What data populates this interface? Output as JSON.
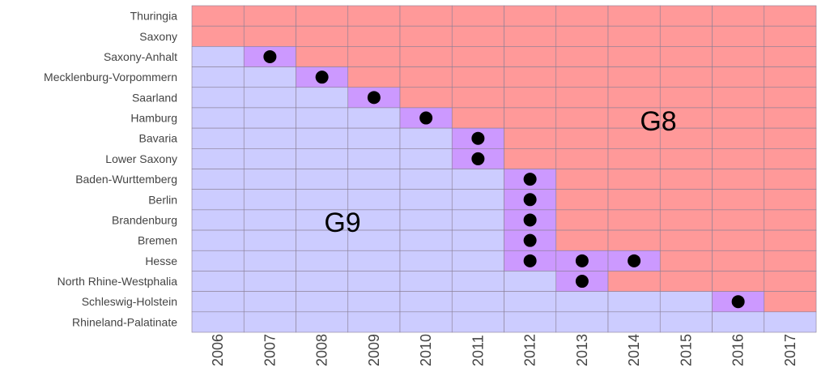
{
  "chart_data": {
    "type": "heatmap",
    "x": [
      2006,
      2007,
      2008,
      2009,
      2010,
      2011,
      2012,
      2013,
      2014,
      2015,
      2016,
      2017
    ],
    "series": [
      {
        "name": "G9",
        "color": "#ccccff"
      },
      {
        "name": "G8",
        "color": "#ff9999"
      }
    ],
    "both_color": "#cc99ff",
    "dot_color": "#000000",
    "rows": [
      {
        "name": "Thuringia",
        "cells": [
          [
            "G8"
          ],
          [
            "G8"
          ],
          [
            "G8"
          ],
          [
            "G8"
          ],
          [
            "G8"
          ],
          [
            "G8"
          ],
          [
            "G8"
          ],
          [
            "G8"
          ],
          [
            "G8"
          ],
          [
            "G8"
          ],
          [
            "G8"
          ],
          [
            "G8"
          ]
        ]
      },
      {
        "name": "Saxony",
        "cells": [
          [
            "G8"
          ],
          [
            "G8"
          ],
          [
            "G8"
          ],
          [
            "G8"
          ],
          [
            "G8"
          ],
          [
            "G8"
          ],
          [
            "G8"
          ],
          [
            "G8"
          ],
          [
            "G8"
          ],
          [
            "G8"
          ],
          [
            "G8"
          ],
          [
            "G8"
          ]
        ]
      },
      {
        "name": "Saxony-Anhalt",
        "cells": [
          [
            "G9"
          ],
          [
            "G9",
            "G8"
          ],
          [
            "G8"
          ],
          [
            "G8"
          ],
          [
            "G8"
          ],
          [
            "G8"
          ],
          [
            "G8"
          ],
          [
            "G8"
          ],
          [
            "G8"
          ],
          [
            "G8"
          ],
          [
            "G8"
          ],
          [
            "G8"
          ]
        ]
      },
      {
        "name": "Mecklenburg-Vorpommern",
        "cells": [
          [
            "G9"
          ],
          [
            "G9"
          ],
          [
            "G9",
            "G8"
          ],
          [
            "G8"
          ],
          [
            "G8"
          ],
          [
            "G8"
          ],
          [
            "G8"
          ],
          [
            "G8"
          ],
          [
            "G8"
          ],
          [
            "G8"
          ],
          [
            "G8"
          ],
          [
            "G8"
          ]
        ]
      },
      {
        "name": "Saarland",
        "cells": [
          [
            "G9"
          ],
          [
            "G9"
          ],
          [
            "G9"
          ],
          [
            "G9",
            "G8"
          ],
          [
            "G8"
          ],
          [
            "G8"
          ],
          [
            "G8"
          ],
          [
            "G8"
          ],
          [
            "G8"
          ],
          [
            "G8"
          ],
          [
            "G8"
          ],
          [
            "G8"
          ]
        ]
      },
      {
        "name": "Hamburg",
        "cells": [
          [
            "G9"
          ],
          [
            "G9"
          ],
          [
            "G9"
          ],
          [
            "G9"
          ],
          [
            "G9",
            "G8"
          ],
          [
            "G8"
          ],
          [
            "G8"
          ],
          [
            "G8"
          ],
          [
            "G8"
          ],
          [
            "G8"
          ],
          [
            "G8"
          ],
          [
            "G8"
          ]
        ]
      },
      {
        "name": "Bavaria",
        "cells": [
          [
            "G9"
          ],
          [
            "G9"
          ],
          [
            "G9"
          ],
          [
            "G9"
          ],
          [
            "G9"
          ],
          [
            "G9",
            "G8"
          ],
          [
            "G8"
          ],
          [
            "G8"
          ],
          [
            "G8"
          ],
          [
            "G8"
          ],
          [
            "G8"
          ],
          [
            "G8"
          ]
        ]
      },
      {
        "name": "Lower Saxony",
        "cells": [
          [
            "G9"
          ],
          [
            "G9"
          ],
          [
            "G9"
          ],
          [
            "G9"
          ],
          [
            "G9"
          ],
          [
            "G9",
            "G8"
          ],
          [
            "G8"
          ],
          [
            "G8"
          ],
          [
            "G8"
          ],
          [
            "G8"
          ],
          [
            "G8"
          ],
          [
            "G8"
          ]
        ]
      },
      {
        "name": "Baden-Wurttemberg",
        "cells": [
          [
            "G9"
          ],
          [
            "G9"
          ],
          [
            "G9"
          ],
          [
            "G9"
          ],
          [
            "G9"
          ],
          [
            "G9"
          ],
          [
            "G9",
            "G8"
          ],
          [
            "G8"
          ],
          [
            "G8"
          ],
          [
            "G8"
          ],
          [
            "G8"
          ],
          [
            "G8"
          ]
        ]
      },
      {
        "name": "Berlin",
        "cells": [
          [
            "G9"
          ],
          [
            "G9"
          ],
          [
            "G9"
          ],
          [
            "G9"
          ],
          [
            "G9"
          ],
          [
            "G9"
          ],
          [
            "G9",
            "G8"
          ],
          [
            "G8"
          ],
          [
            "G8"
          ],
          [
            "G8"
          ],
          [
            "G8"
          ],
          [
            "G8"
          ]
        ]
      },
      {
        "name": "Brandenburg",
        "cells": [
          [
            "G9"
          ],
          [
            "G9"
          ],
          [
            "G9"
          ],
          [
            "G9"
          ],
          [
            "G9"
          ],
          [
            "G9"
          ],
          [
            "G9",
            "G8"
          ],
          [
            "G8"
          ],
          [
            "G8"
          ],
          [
            "G8"
          ],
          [
            "G8"
          ],
          [
            "G8"
          ]
        ]
      },
      {
        "name": "Bremen",
        "cells": [
          [
            "G9"
          ],
          [
            "G9"
          ],
          [
            "G9"
          ],
          [
            "G9"
          ],
          [
            "G9"
          ],
          [
            "G9"
          ],
          [
            "G9",
            "G8"
          ],
          [
            "G8"
          ],
          [
            "G8"
          ],
          [
            "G8"
          ],
          [
            "G8"
          ],
          [
            "G8"
          ]
        ]
      },
      {
        "name": "Hesse",
        "cells": [
          [
            "G9"
          ],
          [
            "G9"
          ],
          [
            "G9"
          ],
          [
            "G9"
          ],
          [
            "G9"
          ],
          [
            "G9"
          ],
          [
            "G9",
            "G8"
          ],
          [
            "G9",
            "G8"
          ],
          [
            "G9",
            "G8"
          ],
          [
            "G8"
          ],
          [
            "G8"
          ],
          [
            "G8"
          ]
        ]
      },
      {
        "name": "North Rhine-Westphalia",
        "cells": [
          [
            "G9"
          ],
          [
            "G9"
          ],
          [
            "G9"
          ],
          [
            "G9"
          ],
          [
            "G9"
          ],
          [
            "G9"
          ],
          [
            "G9"
          ],
          [
            "G9",
            "G8"
          ],
          [
            "G8"
          ],
          [
            "G8"
          ],
          [
            "G8"
          ],
          [
            "G8"
          ]
        ]
      },
      {
        "name": "Schleswig-Holstein",
        "cells": [
          [
            "G9"
          ],
          [
            "G9"
          ],
          [
            "G9"
          ],
          [
            "G9"
          ],
          [
            "G9"
          ],
          [
            "G9"
          ],
          [
            "G9"
          ],
          [
            "G9"
          ],
          [
            "G9"
          ],
          [
            "G9"
          ],
          [
            "G9",
            "G8"
          ],
          [
            "G8"
          ]
        ]
      },
      {
        "name": "Rhineland-Palatinate",
        "cells": [
          [
            "G9"
          ],
          [
            "G9"
          ],
          [
            "G9"
          ],
          [
            "G9"
          ],
          [
            "G9"
          ],
          [
            "G9"
          ],
          [
            "G9"
          ],
          [
            "G9"
          ],
          [
            "G9"
          ],
          [
            "G9"
          ],
          [
            "G9"
          ],
          [
            "G9"
          ]
        ]
      }
    ]
  }
}
